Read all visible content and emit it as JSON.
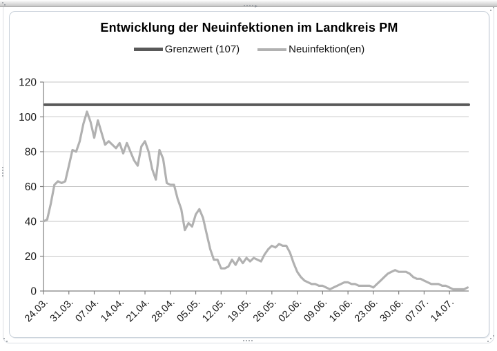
{
  "chart_data": {
    "type": "line",
    "title": "Entwicklung der Neuinfektionen im Landkreis PM",
    "legend_position": "top",
    "grid": "horizontal",
    "ylim": [
      0,
      120
    ],
    "y_ticks": [
      0,
      20,
      40,
      60,
      80,
      100,
      120
    ],
    "x_tick_labels": [
      "24.03.",
      "31.03.",
      "07.04.",
      "14.04.",
      "21.04.",
      "28.04.",
      "05.05.",
      "12.05.",
      "19.05.",
      "26.05.",
      "02.06.",
      "09.06.",
      "16.06.",
      "23.06.",
      "30.06.",
      "07.07.",
      "14.07."
    ],
    "x_tick_every_days": 7,
    "x_domain_days": [
      0,
      117.3
    ],
    "axis_color": "#7f7f7f",
    "gridline_color": "#c6c6c6",
    "label_color": "#1a1a1a",
    "series": [
      {
        "name": "Grenzwert (107)",
        "type": "threshold",
        "value": 107,
        "color": "#595959",
        "stroke_width": 4
      },
      {
        "name": "Neuinfektion(en)",
        "type": "line",
        "color": "#b1b1b1",
        "stroke_width": 3.2,
        "start_label": "24.03.",
        "step_days": 1,
        "values": [
          40,
          41,
          50,
          61,
          63,
          62,
          63,
          72,
          81,
          80,
          86,
          96,
          103,
          97,
          88,
          98,
          91,
          84,
          86,
          84,
          82,
          85,
          79,
          85,
          80,
          75,
          72,
          83,
          86,
          80,
          70,
          64,
          81,
          76,
          62,
          61,
          61,
          53,
          47,
          35,
          39,
          37,
          44,
          47,
          42,
          33,
          24,
          18,
          18,
          13,
          13,
          14,
          18,
          15,
          19,
          16,
          19,
          17,
          19,
          18,
          17,
          21,
          24,
          26,
          25,
          27,
          26,
          26,
          22,
          16,
          11,
          8,
          6,
          5,
          4,
          4,
          3,
          3,
          2,
          1,
          2,
          3,
          4,
          5,
          5,
          4,
          4,
          3,
          3,
          3,
          3,
          2,
          4,
          6,
          8,
          10,
          11,
          12,
          11,
          11,
          11,
          10,
          8,
          7,
          7,
          6,
          5,
          4,
          4,
          4,
          3,
          3,
          2,
          1,
          1,
          1,
          1,
          2
        ]
      }
    ]
  }
}
